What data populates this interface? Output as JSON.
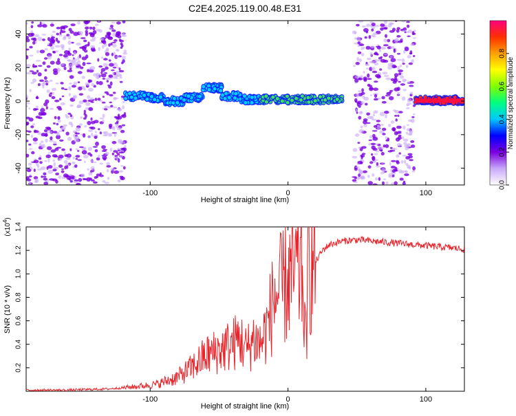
{
  "title": "C2E4.2025.119.00.48.E31",
  "colors": {
    "purple": "#7a00e0",
    "light_purple": "#c8a8f8",
    "snr_line": "#e8242a"
  },
  "chart_data": [
    {
      "type": "heatmap",
      "xlabel": "Height of straight line (km)",
      "ylabel": "Frequency (Hz)",
      "xlim": [
        -190,
        128
      ],
      "ylim": [
        -50,
        48
      ],
      "x_ticks": [
        "-100",
        "0",
        "100"
      ],
      "y_ticks": [
        "40",
        "20",
        "0",
        "-20",
        "-40"
      ],
      "colorbar": {
        "label": "Normalized spectral amplitude",
        "range": [
          0,
          1
        ],
        "ticks": [
          "0.0",
          "0.2",
          "0.4",
          "0.6",
          "0.8"
        ]
      },
      "regions": [
        {
          "x_range": [
            -190,
            -118
          ],
          "y_range": [
            -50,
            48
          ],
          "level": 0.15
        },
        {
          "x_range": [
            -118,
            -20
          ],
          "center_hz": [
            3,
            2,
            0,
            2,
            8,
            3,
            1
          ],
          "level": 0.4
        },
        {
          "x_range": [
            -20,
            40
          ],
          "center_hz": 1,
          "level": 0.6
        },
        {
          "x_range": [
            48,
            92
          ],
          "y_range": [
            -50,
            48
          ],
          "level": 0.15
        },
        {
          "x_range": [
            92,
            128
          ],
          "center_hz": 0.5,
          "level": 0.9
        }
      ]
    },
    {
      "type": "line",
      "xlabel": "Height of straight line (km)",
      "ylabel": "SNR (10 * v/v)",
      "y_multiplier": "(x10",
      "y_multiplier_exp": "4",
      "xlim": [
        -190,
        128
      ],
      "ylim": [
        0,
        1.4
      ],
      "x_ticks": [
        "-100",
        "0",
        "100"
      ],
      "y_ticks": [
        "0.2",
        "0.4",
        "0.6",
        "0.8",
        "1.0",
        "1.2",
        "1.4"
      ],
      "series": [
        {
          "x": [
            -190,
            -160,
            -130,
            -110,
            -95,
            -80,
            -70,
            -60,
            -50,
            -40,
            -35,
            -30,
            -25,
            -20,
            -15,
            -10,
            -5,
            0,
            5,
            10,
            13,
            15,
            20,
            25,
            30,
            40,
            50,
            60,
            70,
            80,
            90,
            100,
            110,
            120,
            128
          ],
          "values": [
            0.01,
            0.01,
            0.02,
            0.04,
            0.06,
            0.12,
            0.2,
            0.3,
            0.35,
            0.4,
            0.45,
            0.35,
            0.45,
            0.4,
            0.55,
            0.8,
            0.85,
            0.95,
            1.0,
            1.05,
            0.4,
            1.1,
            1.1,
            1.2,
            1.25,
            1.28,
            1.29,
            1.28,
            1.27,
            1.26,
            1.25,
            1.24,
            1.23,
            1.22,
            1.21
          ]
        }
      ]
    }
  ]
}
